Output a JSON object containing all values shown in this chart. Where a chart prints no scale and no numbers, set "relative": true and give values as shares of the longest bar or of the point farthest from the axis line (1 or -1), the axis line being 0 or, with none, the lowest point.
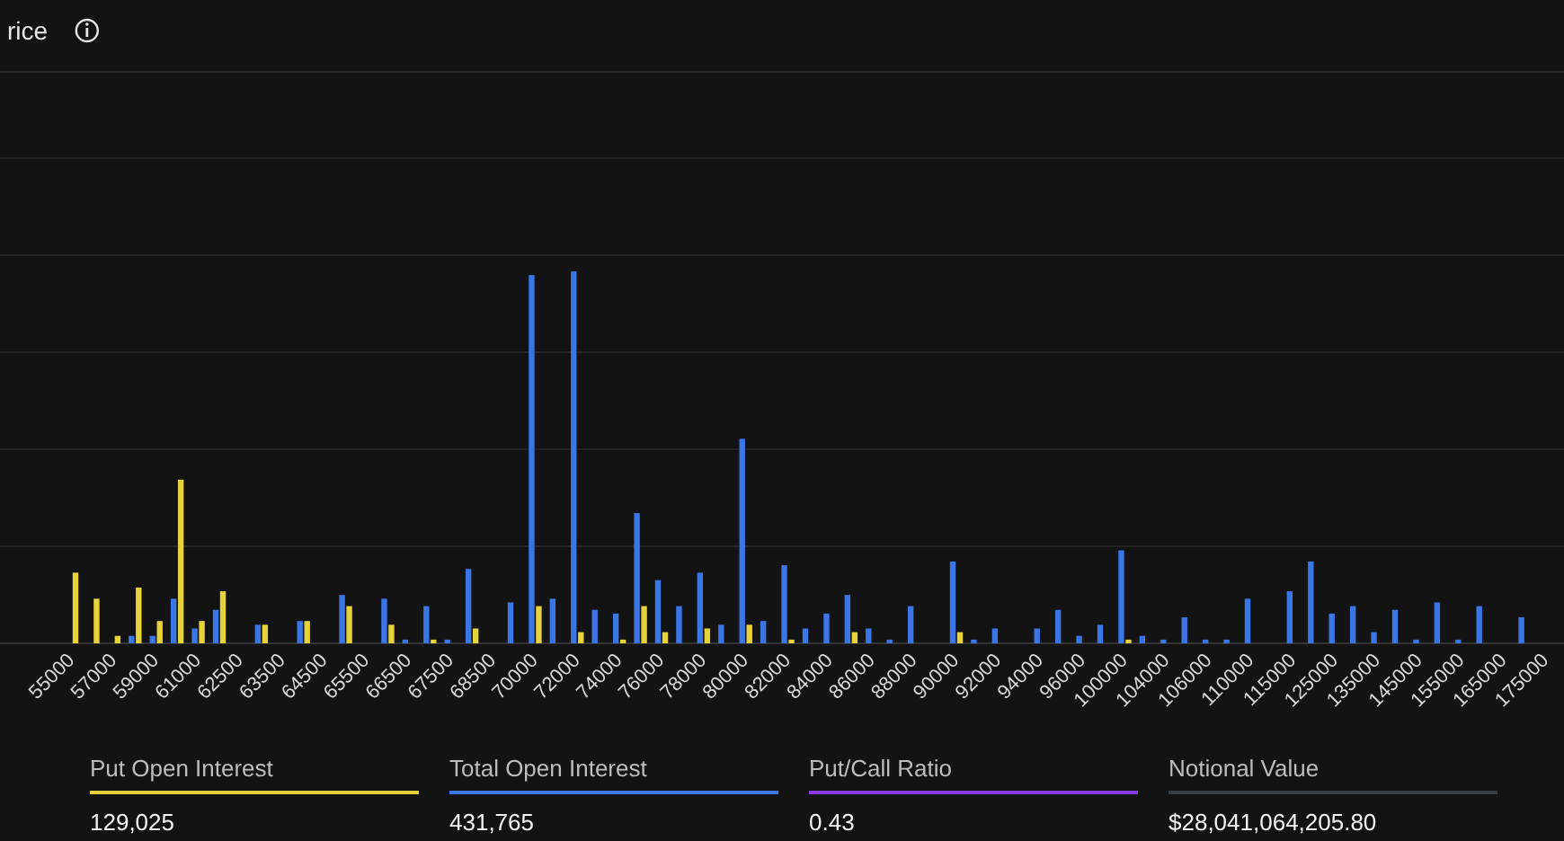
{
  "chart_data": {
    "type": "bar",
    "title": "rice",
    "relative": true,
    "grid": "y",
    "categories": [
      "55000",
      null,
      "57000",
      null,
      "59000",
      null,
      "61000",
      null,
      "62500",
      null,
      "63500",
      null,
      "64500",
      null,
      "65500",
      null,
      "66500",
      null,
      "67500",
      null,
      "68500",
      null,
      "70000",
      null,
      "72000",
      null,
      "74000",
      null,
      "76000",
      null,
      "78000",
      null,
      "80000",
      null,
      "82000",
      null,
      "84000",
      null,
      "86000",
      null,
      "88000",
      null,
      "90000",
      null,
      "92000",
      null,
      "94000",
      null,
      "96000",
      null,
      "100000",
      null,
      "104000",
      null,
      "106000",
      null,
      "110000",
      null,
      "115000",
      null,
      "125000",
      null,
      "135000",
      null,
      "145000",
      null,
      "155000",
      null,
      "165000",
      null,
      "175000"
    ],
    "series": [
      {
        "color": "#3a76e6",
        "values": [
          0,
          0,
          0,
          0.02,
          0.02,
          0.12,
          0.04,
          0.09,
          0,
          0.05,
          0,
          0.06,
          0,
          0.13,
          0,
          0.12,
          0.01,
          0.1,
          0.01,
          0.2,
          0,
          0.11,
          0.99,
          0.12,
          1,
          0.09,
          0.08,
          0.35,
          0.17,
          0.1,
          0.19,
          0.05,
          0.55,
          0.06,
          0.21,
          0.04,
          0.08,
          0.13,
          0.04,
          0.01,
          0.1,
          0,
          0.22,
          0.01,
          0.04,
          0,
          0.04,
          0.09,
          0.02,
          0.05,
          0.25,
          0.02,
          0.01,
          0.07,
          0.01,
          0.01,
          0.12,
          0,
          0.14,
          0.22,
          0.08,
          0.1,
          0.03,
          0.09,
          0.01,
          0.11,
          0.01,
          0.1,
          0,
          0.07,
          null
        ]
      },
      {
        "color": "#e6d23a",
        "values": [
          0.19,
          0.12,
          0.02,
          0.15,
          0.06,
          0.44,
          0.06,
          0.14,
          0,
          0.05,
          0,
          0.06,
          0,
          0.1,
          0,
          0.05,
          0,
          0.01,
          0,
          0.04,
          0,
          0,
          0.1,
          0,
          0.03,
          0,
          0.01,
          0.1,
          0.03,
          0,
          0.04,
          0,
          0.05,
          0,
          0.01,
          0,
          0,
          0.03,
          0,
          0,
          0,
          0,
          0.03,
          0,
          0,
          0,
          0,
          0,
          0,
          0,
          0.01,
          0,
          0,
          0,
          0,
          0,
          0,
          0,
          0,
          0,
          0,
          0,
          0,
          0,
          0,
          0,
          0,
          0,
          0,
          0,
          null
        ]
      }
    ],
    "annotations": [
      "Put Open Interest",
      "129,025",
      "Total Open Interest",
      "431,765",
      "Put/Call Ratio",
      "0.43",
      "Notional Value",
      "$28,041,064,205.80"
    ]
  }
}
